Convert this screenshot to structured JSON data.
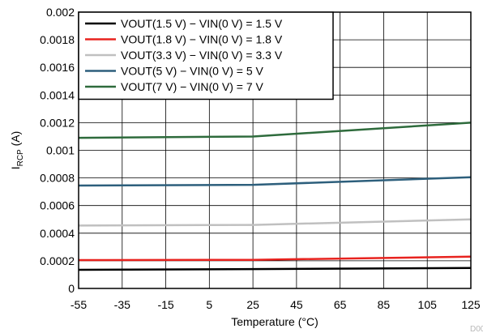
{
  "chart_data": {
    "type": "line",
    "xlabel": "Temperature (°C)",
    "ylabel": {
      "main": "I",
      "sub": "RCP",
      "unit": " (A)"
    },
    "xlim": [
      -55,
      125
    ],
    "ylim": [
      0,
      0.002
    ],
    "xticks": [
      -55,
      -35,
      -15,
      5,
      25,
      45,
      65,
      85,
      105,
      125
    ],
    "xtick_labels": [
      "-55",
      "-35",
      "-15",
      "5",
      "25",
      "45",
      "65",
      "85",
      "105",
      "125"
    ],
    "yticks": [
      0,
      0.0002,
      0.0004,
      0.0006,
      0.0008,
      0.001,
      0.0012,
      0.0014,
      0.0016,
      0.0018,
      0.002
    ],
    "ytick_labels": [
      "0",
      "0.0002",
      "0.0004",
      "0.0006",
      "0.0008",
      "0.001",
      "0.0012",
      "0.0014",
      "0.0016",
      "0.0018",
      "0.002"
    ],
    "grid": true,
    "legend_position": "top-left",
    "x": [
      -55,
      25,
      125
    ],
    "series": [
      {
        "name": "VOUT(1.5 V) − VIN(0 V) = 1.5 V",
        "color": "#000000",
        "values": [
          0.000135,
          0.00014,
          0.000148
        ]
      },
      {
        "name": "VOUT(1.8 V) − VIN(0 V) = 1.8 V",
        "color": "#e8231f",
        "values": [
          0.000205,
          0.000207,
          0.00023
        ]
      },
      {
        "name": "VOUT(3.3 V) − VIN(0 V) = 3.3 V",
        "color": "#c0c0c0",
        "values": [
          0.000455,
          0.00046,
          0.0005
        ]
      },
      {
        "name": "VOUT(5 V) − VIN(0 V) = 5 V",
        "color": "#2d5f7c",
        "values": [
          0.000745,
          0.00075,
          0.000805
        ]
      },
      {
        "name": "VOUT(7 V) − VIN(0 V) = 7 V",
        "color": "#2e6b3c",
        "values": [
          0.00109,
          0.0011,
          0.0012
        ]
      }
    ],
    "footnote_code": "D00"
  }
}
